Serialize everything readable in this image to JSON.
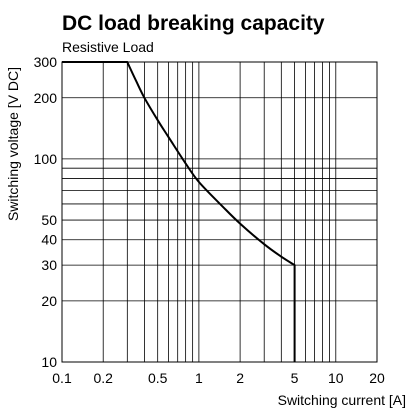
{
  "chart_data": {
    "type": "line",
    "title": "DC load breaking capacity",
    "subtitle": "Resistive Load",
    "xlabel": "Switching current [A]",
    "ylabel": "Switching voltage [V DC]",
    "x_scale": "log",
    "y_scale": "log",
    "xlim": [
      0.1,
      20
    ],
    "ylim": [
      10,
      300
    ],
    "grid": true,
    "x_ticks": [
      0.1,
      0.2,
      0.5,
      1,
      2,
      5,
      10,
      20
    ],
    "x_tick_labels": [
      "0.1",
      "0.2",
      "0.5",
      "1",
      "2",
      "5",
      "10",
      "20"
    ],
    "y_ticks": [
      10,
      20,
      30,
      40,
      50,
      100,
      200,
      300
    ],
    "y_tick_labels": [
      "10",
      "20",
      "30",
      "40",
      "50",
      "100",
      "200",
      "300"
    ],
    "x_gridlines": [
      0.1,
      0.2,
      0.3,
      0.4,
      0.5,
      0.6,
      0.7,
      0.8,
      0.9,
      1,
      2,
      3,
      4,
      5,
      6,
      7,
      8,
      9,
      10,
      20
    ],
    "y_gridlines": [
      10,
      20,
      30,
      40,
      50,
      60,
      70,
      80,
      90,
      100,
      200,
      300
    ],
    "series": [
      {
        "x": [
          0.1,
          0.3,
          0.35,
          0.4,
          0.5,
          0.6,
          0.8,
          1,
          1.5,
          2,
          3,
          4,
          5,
          5,
          5
        ],
        "y": [
          300,
          300,
          240,
          200,
          155,
          128,
          95,
          77,
          58,
          48,
          38,
          33,
          30,
          20,
          10
        ]
      }
    ],
    "line_color": "#000000",
    "grid_color": "#000000"
  }
}
